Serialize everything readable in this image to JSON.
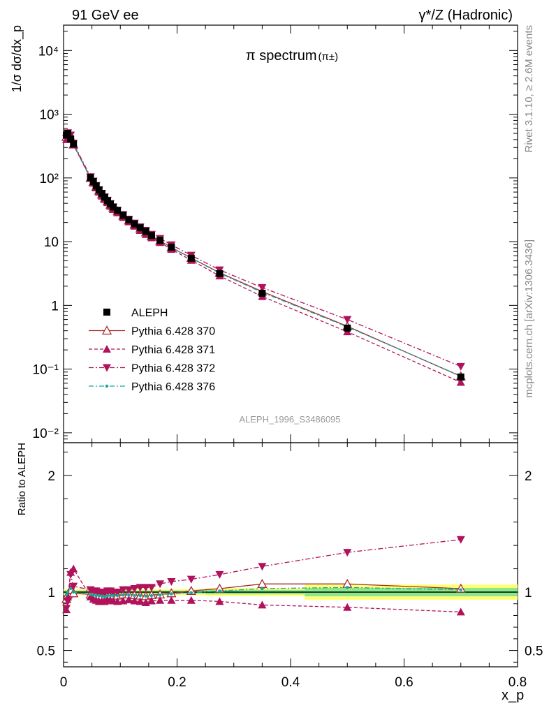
{
  "header": {
    "left": "91 GeV ee",
    "right": "γ*/Z (Hadronic)"
  },
  "side_text": {
    "top": "Rivet 3.1.10, ≥ 2.6M events",
    "bottom": "mcplots.cern.ch [arXiv:1306.3436]"
  },
  "chart_data": [
    {
      "type": "scatter",
      "panel": "main",
      "title": "π spectrum",
      "title_suffix": "(π±)",
      "ylabel": "1/σ dσ/dx_p",
      "yscale": "log",
      "ylim": [
        0.007,
        25000
      ],
      "xlim": [
        0,
        0.8
      ],
      "annotation": "ALEPH_1996_S3486095",
      "legend_position": "center-left",
      "x": [
        0.005,
        0.0075,
        0.0125,
        0.0175,
        0.0475,
        0.0525,
        0.0575,
        0.0625,
        0.0675,
        0.0725,
        0.0775,
        0.0825,
        0.0875,
        0.095,
        0.105,
        0.115,
        0.125,
        0.135,
        0.145,
        0.155,
        0.17,
        0.19,
        0.225,
        0.275,
        0.35,
        0.5,
        0.7
      ],
      "series": [
        {
          "name": "ALEPH",
          "color": "#000000",
          "marker": "square",
          "values": [
            470,
            500,
            410,
            340,
            102,
            88,
            75,
            65,
            57,
            50,
            44,
            39,
            35,
            31,
            26,
            22,
            19,
            16.5,
            14.5,
            12.5,
            10.5,
            8.2,
            5.5,
            3.15,
            1.55,
            0.44,
            0.075
          ]
        },
        {
          "name": "Pythia 6.428 370",
          "color": "#a52a2a",
          "marker": "triangle-up-open",
          "line": "solid",
          "values": [
            440,
            490,
            420,
            335,
            100,
            86,
            73,
            63,
            55,
            48,
            43,
            38,
            34,
            30,
            25.5,
            21.5,
            18.5,
            16,
            14,
            12.2,
            10.3,
            8.1,
            5.55,
            3.25,
            1.65,
            0.47,
            0.077
          ]
        },
        {
          "name": "Pythia 6.428 371",
          "color": "#b0125b",
          "marker": "triangle-up",
          "line": "dashed",
          "values": [
            400,
            480,
            450,
            330,
            98,
            83,
            70,
            60,
            52,
            46,
            41,
            36,
            32,
            28.5,
            24,
            20.5,
            17.5,
            15,
            13,
            11.5,
            9.7,
            7.6,
            5.1,
            2.9,
            1.38,
            0.385,
            0.062
          ]
        },
        {
          "name": "Pythia 6.428 372",
          "color": "#b0125b",
          "marker": "triangle-down",
          "line": "dashdot",
          "values": [
            420,
            510,
            470,
            350,
            104,
            89,
            76,
            65,
            57,
            50,
            44.5,
            39.5,
            35,
            31,
            26.5,
            22.5,
            19.5,
            17,
            15,
            13,
            11.2,
            8.9,
            6.1,
            3.6,
            1.9,
            0.6,
            0.11
          ]
        },
        {
          "name": "Pythia 6.428 376",
          "color": "#1aa59a",
          "marker": "dot",
          "line": "dashdot",
          "values": [
            460,
            500,
            420,
            340,
            100,
            86,
            73,
            63,
            55,
            48,
            43,
            38,
            34,
            30,
            25.5,
            21.5,
            18.5,
            16,
            14,
            12.2,
            10.3,
            8.1,
            5.5,
            3.2,
            1.6,
            0.46,
            0.078
          ]
        }
      ]
    },
    {
      "type": "scatter",
      "panel": "ratio",
      "ylabel": "Ratio to ALEPH",
      "ylim": [
        0.36,
        2.28
      ],
      "xlim": [
        0,
        0.8
      ],
      "xlabel": "x_p",
      "x_ticks": [
        "0",
        "0.2",
        "0.4",
        "0.6",
        "0.8"
      ],
      "y_ticks": [
        "0.5",
        "1",
        "2"
      ],
      "x": [
        0.005,
        0.0075,
        0.0125,
        0.0175,
        0.0475,
        0.0525,
        0.0575,
        0.0625,
        0.0675,
        0.0725,
        0.0775,
        0.0825,
        0.0875,
        0.095,
        0.105,
        0.115,
        0.125,
        0.135,
        0.145,
        0.155,
        0.17,
        0.19,
        0.225,
        0.275,
        0.35,
        0.5,
        0.7
      ],
      "series": [
        {
          "name": "Pythia 6.428 370",
          "color": "#a52a2a",
          "values": [
            0.94,
            0.98,
            1.02,
            0.99,
            0.98,
            0.98,
            0.97,
            0.97,
            0.965,
            0.96,
            0.97,
            0.975,
            0.97,
            0.97,
            0.98,
            0.98,
            0.975,
            0.97,
            0.965,
            0.975,
            0.98,
            0.99,
            1.01,
            1.03,
            1.07,
            1.07,
            1.03
          ]
        },
        {
          "name": "Pythia 6.428 371",
          "color": "#b0125b",
          "values": [
            0.85,
            0.96,
            1.17,
            1.2,
            0.96,
            0.94,
            0.93,
            0.92,
            0.92,
            0.92,
            0.93,
            0.93,
            0.925,
            0.92,
            0.925,
            0.935,
            0.925,
            0.92,
            0.91,
            0.925,
            0.93,
            0.93,
            0.93,
            0.92,
            0.89,
            0.87,
            0.83
          ]
        },
        {
          "name": "Pythia 6.428 372",
          "color": "#b0125b",
          "values": [
            0.86,
            0.92,
            1.15,
            1.05,
            1.02,
            1.01,
            1.01,
            1.0,
            1.0,
            1.0,
            1.01,
            1.01,
            1.0,
            1.0,
            1.02,
            1.02,
            1.03,
            1.04,
            1.04,
            1.04,
            1.07,
            1.09,
            1.11,
            1.15,
            1.22,
            1.34,
            1.45
          ]
        },
        {
          "name": "Pythia 6.428 376",
          "color": "#1aa59a",
          "values": [
            0.98,
            1.0,
            1.03,
            1.0,
            0.98,
            0.975,
            0.97,
            0.97,
            0.965,
            0.96,
            0.97,
            0.97,
            0.97,
            0.97,
            0.975,
            0.975,
            0.97,
            0.97,
            0.965,
            0.97,
            0.975,
            0.985,
            0.995,
            1.01,
            1.03,
            1.04,
            1.02
          ]
        }
      ]
    }
  ]
}
